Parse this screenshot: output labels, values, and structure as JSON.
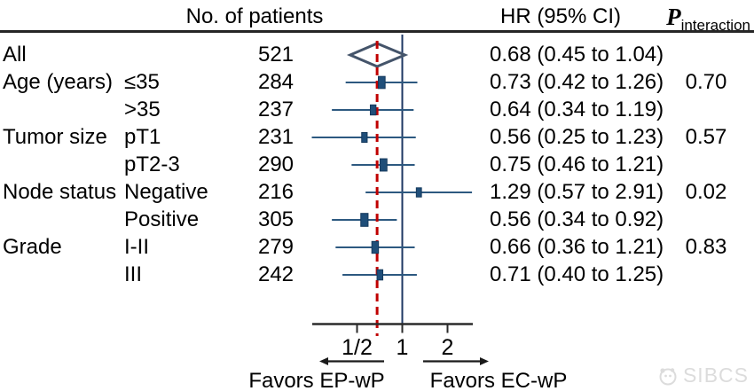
{
  "header": {
    "col_patients": "No. of patients",
    "col_hr": "HR (95% CI)",
    "col_p_main": "P",
    "col_p_sub": "interaction"
  },
  "chart_data": {
    "type": "forest",
    "x_scale": "log2",
    "xlim": [
      0.22,
      3.1
    ],
    "ref_value": 1,
    "pooled_line_value": 0.68,
    "axis_ticks": [
      {
        "label": "1/2",
        "value": 0.5
      },
      {
        "label": "1",
        "value": 1
      },
      {
        "label": "2",
        "value": 2
      }
    ],
    "rows": [
      {
        "group": "All",
        "sub": "",
        "n": 521,
        "hr": 0.68,
        "lo": 0.45,
        "hi": 1.04,
        "hr_text": "0.68 (0.45 to 1.04)",
        "p": "",
        "marker": "diamond"
      },
      {
        "group": "Age (years)",
        "sub": "≤35",
        "n": 284,
        "hr": 0.73,
        "lo": 0.42,
        "hi": 1.26,
        "hr_text": "0.73 (0.42 to 1.26)",
        "p": "0.70",
        "marker": "square"
      },
      {
        "group": "",
        "sub": ">35",
        "n": 237,
        "hr": 0.64,
        "lo": 0.34,
        "hi": 1.19,
        "hr_text": "0.64 (0.34 to 1.19)",
        "p": "",
        "marker": "square"
      },
      {
        "group": "Tumor size",
        "sub": "pT1",
        "n": 231,
        "hr": 0.56,
        "lo": 0.25,
        "hi": 1.23,
        "hr_text": "0.56 (0.25 to 1.23)",
        "p": "0.57",
        "marker": "square"
      },
      {
        "group": "",
        "sub": "pT2-3",
        "n": 290,
        "hr": 0.75,
        "lo": 0.46,
        "hi": 1.21,
        "hr_text": "0.75 (0.46 to 1.21)",
        "p": "",
        "marker": "square"
      },
      {
        "group": "Node status",
        "sub": "Negative",
        "n": 216,
        "hr": 1.29,
        "lo": 0.57,
        "hi": 2.91,
        "hr_text": "1.29 (0.57 to 2.91)",
        "p": "0.02",
        "marker": "square"
      },
      {
        "group": "",
        "sub": "Positive",
        "n": 305,
        "hr": 0.56,
        "lo": 0.34,
        "hi": 0.92,
        "hr_text": "0.56 (0.34 to 0.92)",
        "p": "",
        "marker": "square"
      },
      {
        "group": "Grade",
        "sub": "I-II",
        "n": 279,
        "hr": 0.66,
        "lo": 0.36,
        "hi": 1.21,
        "hr_text": "0.66 (0.36 to 1.21)",
        "p": "0.83",
        "marker": "square"
      },
      {
        "group": "",
        "sub": "III",
        "n": 242,
        "hr": 0.71,
        "lo": 0.4,
        "hi": 1.25,
        "hr_text": "0.71 (0.40 to 1.25)",
        "p": "",
        "marker": "square"
      }
    ]
  },
  "footer": {
    "favors_left": "Favors EP-wP",
    "favors_right": "Favors EC-wP"
  },
  "watermark": {
    "label": "SIBCS"
  },
  "colors": {
    "marker": "#1f4e79",
    "marker_stroke": "#15395c",
    "whisker": "#2d5980",
    "ref_line": "#1f3864",
    "pooled_line": "#c00000",
    "diamond": "#44546a",
    "axis": "#2b2b2b",
    "arrow": "#1a1a1a",
    "watermark": "#dcdcdc"
  }
}
